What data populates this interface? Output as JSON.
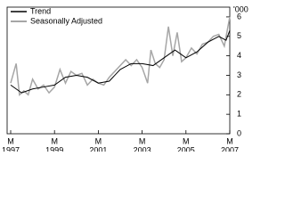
{
  "chart_data": {
    "type": "line",
    "y_label": "'000",
    "xlim": [
      1997,
      2007
    ],
    "xticks": [
      {
        "value": 1997,
        "label": [
          "M",
          "1997"
        ]
      },
      {
        "value": 1999,
        "label": [
          "M",
          "1999"
        ]
      },
      {
        "value": 2001,
        "label": [
          "M",
          "2001"
        ]
      },
      {
        "value": 2003,
        "label": [
          "M",
          "2003"
        ]
      },
      {
        "value": 2005,
        "label": [
          "M",
          "2005"
        ]
      },
      {
        "value": 2007,
        "label": [
          "M",
          "2007"
        ]
      }
    ],
    "ylim": [
      0,
      6.5
    ],
    "yticks": [
      0,
      1,
      2,
      3,
      4,
      5,
      6
    ],
    "grid": false,
    "legend": "top-left",
    "series": [
      {
        "name": "Trend",
        "color": "#000000",
        "width": 1,
        "x": [
          1997,
          1997.5,
          1998,
          1998.5,
          1999,
          1999.5,
          2000,
          2000.5,
          2001,
          2001.5,
          2002,
          2002.5,
          2003,
          2003.5,
          2004,
          2004.5,
          2005,
          2005.5,
          2006,
          2006.5,
          2006.83,
          2007
        ],
        "values": [
          2.5,
          2.1,
          2.3,
          2.4,
          2.5,
          2.9,
          3.0,
          2.9,
          2.6,
          2.7,
          3.3,
          3.6,
          3.6,
          3.5,
          3.9,
          4.3,
          3.9,
          4.2,
          4.7,
          5.0,
          4.8,
          5.3
        ]
      },
      {
        "name": "Seasonally Adjusted",
        "color": "#a6a6a6",
        "width": 1.5,
        "x": [
          1997,
          1997.25,
          1997.4,
          1997.6,
          1997.8,
          1998,
          1998.25,
          1998.5,
          1998.75,
          1999,
          1999.25,
          1999.5,
          1999.75,
          2000,
          2000.25,
          2000.5,
          2000.75,
          2001,
          2001.25,
          2001.5,
          2001.75,
          2002,
          2002.25,
          2002.5,
          2002.75,
          2003,
          2003.25,
          2003.4,
          2003.6,
          2003.8,
          2004,
          2004.2,
          2004.4,
          2004.6,
          2004.8,
          2005,
          2005.25,
          2005.5,
          2005.75,
          2006,
          2006.25,
          2006.5,
          2006.75,
          2007
        ],
        "values": [
          2.6,
          3.6,
          2.0,
          2.2,
          2.0,
          2.8,
          2.3,
          2.5,
          2.1,
          2.4,
          3.3,
          2.6,
          3.2,
          3.0,
          3.1,
          2.5,
          2.8,
          2.6,
          2.5,
          2.9,
          3.2,
          3.5,
          3.8,
          3.5,
          3.8,
          3.4,
          2.6,
          4.3,
          3.6,
          3.4,
          3.8,
          5.5,
          4.0,
          5.2,
          3.7,
          3.9,
          4.4,
          4.1,
          4.6,
          4.7,
          5.0,
          5.1,
          4.5,
          6.0
        ]
      }
    ]
  }
}
